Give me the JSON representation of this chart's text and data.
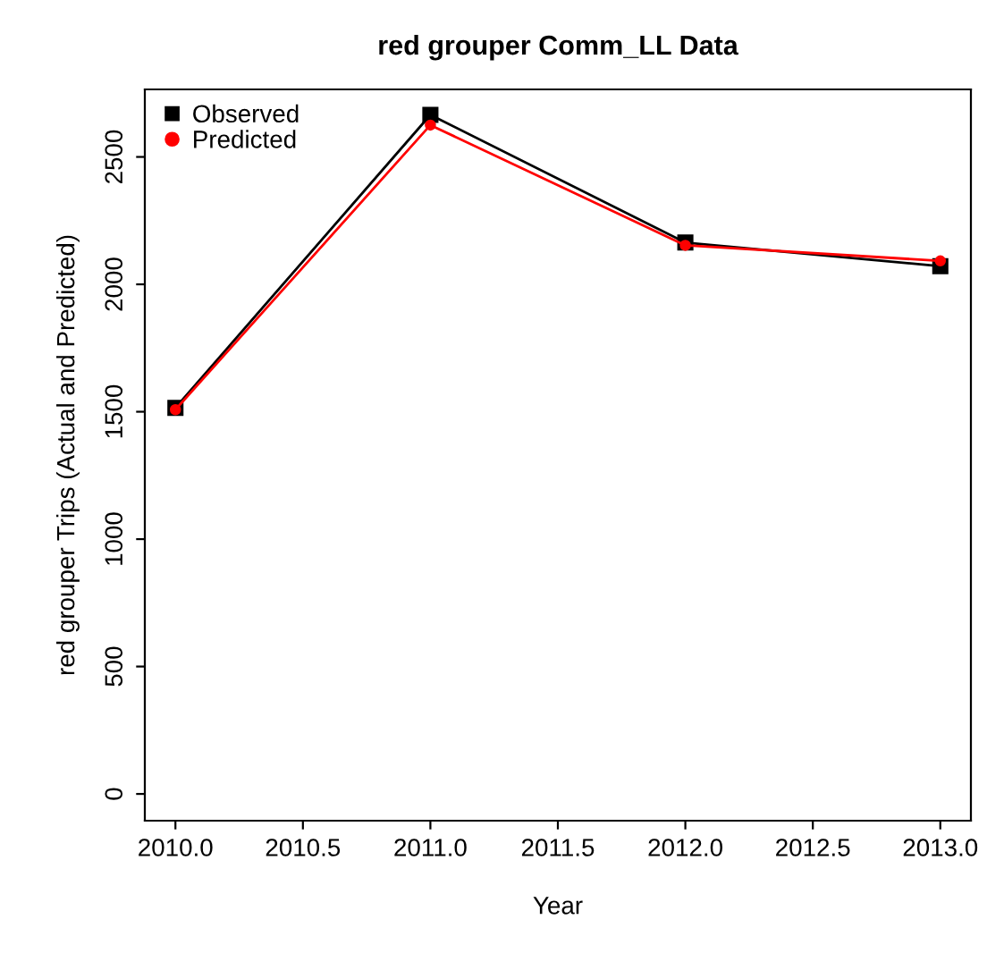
{
  "chart_data": {
    "type": "line",
    "title": "red grouper Comm_LL Data",
    "xlabel": "Year",
    "ylabel": "red grouper Trips (Actual and Predicted)",
    "x": [
      2010,
      2011,
      2012,
      2013
    ],
    "series": [
      {
        "name": "Observed",
        "color": "#000000",
        "marker": "square",
        "values": [
          1515,
          2665,
          2164,
          2071
        ]
      },
      {
        "name": "Predicted",
        "color": "#ff0000",
        "marker": "circle",
        "values": [
          1508,
          2625,
          2153,
          2092
        ]
      }
    ],
    "xlim": [
      2009.88,
      2013.12
    ],
    "ylim": [
      -105,
      2765
    ],
    "xticks": [
      {
        "value": 2010,
        "label": "2010.0"
      },
      {
        "value": 2010.5,
        "label": "2010.5"
      },
      {
        "value": 2011,
        "label": "2011.0"
      },
      {
        "value": 2011.5,
        "label": "2011.5"
      },
      {
        "value": 2012,
        "label": "2012.0"
      },
      {
        "value": 2012.5,
        "label": "2012.5"
      },
      {
        "value": 2013,
        "label": "2013.0"
      }
    ],
    "yticks": [
      0,
      500,
      1000,
      1500,
      2000,
      2500
    ],
    "grid": false,
    "legend": "top left",
    "line_style": "solid"
  }
}
